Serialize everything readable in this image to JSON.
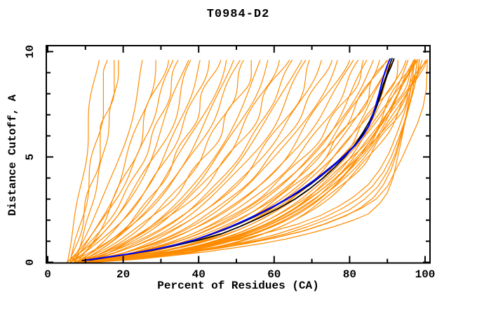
{
  "chart_data": {
    "type": "line",
    "title": "T0984-D2",
    "xlabel": "Percent of Residues (CA)",
    "ylabel": "Distance Cutoff, A",
    "xlim": [
      0,
      100
    ],
    "ylim": [
      0,
      10
    ],
    "grid": false,
    "legend": "none",
    "x_major_ticks": [
      0,
      20,
      40,
      60,
      80,
      100
    ],
    "x_minor_ticks": [
      10,
      30,
      50,
      70,
      90
    ],
    "x_tick_labels": [
      "0",
      "20",
      "40",
      "60",
      "80",
      "100"
    ],
    "y_major_ticks": [
      0,
      5,
      10
    ],
    "y_minor_ticks": [
      1,
      2,
      3,
      4,
      6,
      7,
      8,
      9
    ],
    "y_tick_labels": [
      "0",
      "5",
      "10"
    ],
    "colors": {
      "model_lines": "#ff8c00",
      "best_model_line": "#0000ff",
      "second_model_line": "#000090",
      "reference_lines": "#000000",
      "axis": "#000000",
      "text": "#000000",
      "background": "#ffffff"
    },
    "y_curve_top": 9.7,
    "model_curves_param": [
      [
        5,
        13,
        8,
        1
      ],
      [
        6,
        16,
        7,
        2
      ],
      [
        6,
        18,
        9,
        3
      ],
      [
        7,
        19,
        6,
        4
      ],
      [
        6,
        26,
        5,
        5
      ],
      [
        7,
        29,
        4.5,
        6
      ],
      [
        8,
        31,
        5.5,
        7
      ],
      [
        5,
        33,
        3.5,
        8
      ],
      [
        6,
        35,
        3.2,
        9
      ],
      [
        7,
        37,
        3,
        10
      ],
      [
        5,
        39,
        2.8,
        11
      ],
      [
        8,
        41,
        2.6,
        12
      ],
      [
        6,
        43,
        2.5,
        13
      ],
      [
        9,
        45,
        2.4,
        14
      ],
      [
        7,
        47,
        2.2,
        15
      ],
      [
        8,
        49,
        2.1,
        16
      ],
      [
        6,
        51,
        2,
        17
      ],
      [
        9,
        53,
        1.8,
        18
      ],
      [
        7,
        55,
        1.7,
        19
      ],
      [
        10,
        57,
        1.6,
        20
      ],
      [
        8,
        59,
        1.5,
        21
      ],
      [
        9,
        61,
        1.5,
        22
      ],
      [
        7,
        63,
        1.4,
        23
      ],
      [
        10,
        65,
        1.3,
        24
      ],
      [
        8,
        67,
        1.3,
        25
      ],
      [
        9,
        69,
        1.2,
        26
      ],
      [
        11,
        71,
        1.1,
        27
      ],
      [
        8,
        73,
        1.1,
        28
      ],
      [
        10,
        75,
        1,
        29
      ],
      [
        9,
        77,
        0.95,
        30
      ],
      [
        11,
        79,
        0.9,
        31
      ],
      [
        8,
        81,
        0.85,
        32
      ],
      [
        10,
        83,
        0.8,
        33
      ],
      [
        9,
        85,
        0.75,
        34
      ],
      [
        10,
        86,
        0.7,
        35
      ],
      [
        8,
        87,
        0.65,
        36
      ],
      [
        11,
        88,
        0.6,
        37
      ],
      [
        9,
        89,
        0.6,
        38
      ],
      [
        10,
        90,
        0.55,
        39
      ],
      [
        8,
        91,
        0.5,
        40
      ],
      [
        11,
        92,
        0.5,
        41
      ],
      [
        9,
        93,
        0.45,
        42
      ],
      [
        10,
        94,
        0.45,
        43
      ],
      [
        8,
        95,
        0.4,
        44
      ],
      [
        11,
        96,
        0.4,
        45
      ],
      [
        9,
        96.5,
        0.35,
        46
      ],
      [
        10,
        97,
        0.35,
        47
      ],
      [
        8,
        97.5,
        0.3,
        48
      ],
      [
        11,
        98,
        0.3,
        49
      ],
      [
        9,
        98.5,
        0.28,
        50
      ],
      [
        10,
        99,
        0.26,
        51
      ],
      [
        8,
        99.5,
        0.24,
        52
      ],
      [
        12,
        100,
        0.22,
        53
      ],
      [
        9,
        100,
        0.2,
        54
      ],
      [
        11,
        99,
        0.3,
        55
      ],
      [
        10,
        98,
        0.33,
        56
      ]
    ],
    "model_curves_points": [
      [
        [
          8,
          0
        ],
        [
          20,
          0.15
        ],
        [
          32,
          0.3
        ],
        [
          42,
          0.5
        ],
        [
          50,
          0.7
        ],
        [
          57,
          0.9
        ],
        [
          63,
          1.1
        ],
        [
          70,
          1.4
        ],
        [
          76,
          1.7
        ],
        [
          81,
          2.0
        ],
        [
          85,
          2.3
        ],
        [
          88,
          2.8
        ],
        [
          90,
          3.3
        ],
        [
          91.5,
          4.0
        ],
        [
          92.5,
          4.8
        ],
        [
          93.5,
          5.6
        ],
        [
          94.5,
          6.5
        ],
        [
          95.5,
          7.5
        ],
        [
          96.5,
          8.5
        ],
        [
          97,
          9.2
        ],
        [
          97.3,
          9.65
        ]
      ],
      [
        [
          9,
          0
        ],
        [
          18,
          0.15
        ],
        [
          28,
          0.3
        ],
        [
          38,
          0.5
        ],
        [
          46,
          0.72
        ],
        [
          54,
          0.95
        ],
        [
          61,
          1.2
        ],
        [
          68,
          1.5
        ],
        [
          74,
          1.85
        ],
        [
          79,
          2.2
        ],
        [
          83,
          2.6
        ],
        [
          86.5,
          3.1
        ],
        [
          89,
          3.7
        ],
        [
          91,
          4.4
        ],
        [
          92.5,
          5.2
        ],
        [
          94,
          6.2
        ],
        [
          95.5,
          7.2
        ],
        [
          97,
          8.2
        ],
        [
          98,
          9.0
        ],
        [
          98.5,
          9.65
        ]
      ],
      [
        [
          10,
          0
        ],
        [
          22,
          0.2
        ],
        [
          34,
          0.4
        ],
        [
          45,
          0.65
        ],
        [
          53,
          0.9
        ],
        [
          60,
          1.15
        ],
        [
          67,
          1.45
        ],
        [
          73,
          1.8
        ],
        [
          78,
          2.15
        ],
        [
          83,
          2.55
        ],
        [
          87,
          3.0
        ],
        [
          90,
          3.6
        ],
        [
          92,
          4.3
        ],
        [
          94,
          5.0
        ],
        [
          96,
          5.8
        ],
        [
          98,
          6.6
        ],
        [
          99.5,
          7.4
        ],
        [
          100.3,
          8.2
        ],
        [
          100.5,
          9.0
        ],
        [
          100.6,
          9.65
        ]
      ],
      [
        [
          7,
          0
        ],
        [
          16,
          0.18
        ],
        [
          26,
          0.38
        ],
        [
          36,
          0.6
        ],
        [
          44,
          0.85
        ],
        [
          52,
          1.12
        ],
        [
          59,
          1.45
        ],
        [
          66,
          1.8
        ],
        [
          72,
          2.2
        ],
        [
          77,
          2.65
        ],
        [
          81,
          3.1
        ],
        [
          85,
          3.7
        ],
        [
          88,
          4.4
        ],
        [
          90.5,
          5.2
        ],
        [
          92.5,
          6.1
        ],
        [
          94.5,
          7.1
        ],
        [
          96,
          8.1
        ],
        [
          97.5,
          9.0
        ],
        [
          98,
          9.65
        ]
      ],
      [
        [
          9,
          0
        ],
        [
          24,
          0.25
        ],
        [
          38,
          0.5
        ],
        [
          48,
          0.78
        ],
        [
          56,
          1.05
        ],
        [
          63,
          1.35
        ],
        [
          69,
          1.7
        ],
        [
          75,
          2.1
        ],
        [
          80,
          2.5
        ],
        [
          84,
          3.0
        ],
        [
          87.5,
          3.6
        ],
        [
          90,
          4.3
        ],
        [
          92,
          5.1
        ],
        [
          93.5,
          6.0
        ],
        [
          95,
          7.0
        ],
        [
          96.5,
          8.0
        ],
        [
          97.5,
          9.0
        ],
        [
          98,
          9.65
        ]
      ],
      [
        [
          11,
          0
        ],
        [
          26,
          0.3
        ],
        [
          40,
          0.6
        ],
        [
          52,
          0.95
        ],
        [
          60,
          1.3
        ],
        [
          67,
          1.7
        ],
        [
          73,
          2.1
        ],
        [
          78,
          2.55
        ],
        [
          82.5,
          3.05
        ],
        [
          86,
          3.6
        ],
        [
          89,
          4.3
        ],
        [
          91,
          5.0
        ],
        [
          93,
          5.9
        ],
        [
          95,
          6.9
        ],
        [
          96.5,
          7.9
        ],
        [
          98,
          8.9
        ],
        [
          98.5,
          9.65
        ]
      ]
    ],
    "reference_curves": [
      {
        "name": "black-curve-1",
        "color": "#000000",
        "points": [
          [
            9,
            0.08
          ],
          [
            13,
            0.18
          ],
          [
            18,
            0.3
          ],
          [
            23,
            0.44
          ],
          [
            28,
            0.6
          ],
          [
            33,
            0.78
          ],
          [
            38,
            1.0
          ],
          [
            43,
            1.3
          ],
          [
            47,
            1.56
          ],
          [
            51,
            1.85
          ],
          [
            55,
            2.18
          ],
          [
            59,
            2.55
          ],
          [
            63,
            2.95
          ],
          [
            66.5,
            3.32
          ],
          [
            69.5,
            3.68
          ],
          [
            72.5,
            4.1
          ],
          [
            75.5,
            4.55
          ],
          [
            78.5,
            5.05
          ],
          [
            81,
            5.5
          ],
          [
            83,
            5.95
          ],
          [
            84.8,
            6.4
          ],
          [
            86,
            6.85
          ],
          [
            87.2,
            7.4
          ],
          [
            88.2,
            7.9
          ],
          [
            89,
            8.4
          ],
          [
            90,
            8.9
          ],
          [
            91,
            9.3
          ],
          [
            91.8,
            9.68
          ]
        ]
      },
      {
        "name": "black-curve-2",
        "color": "#000000",
        "points": [
          [
            11,
            0.1
          ],
          [
            16,
            0.24
          ],
          [
            22,
            0.4
          ],
          [
            28,
            0.58
          ],
          [
            34,
            0.8
          ],
          [
            40,
            1.05
          ],
          [
            46,
            1.35
          ],
          [
            51,
            1.7
          ],
          [
            56,
            2.1
          ],
          [
            61,
            2.55
          ],
          [
            65.5,
            3.0
          ],
          [
            69.5,
            3.5
          ],
          [
            73,
            4.0
          ],
          [
            76,
            4.5
          ],
          [
            79,
            5.05
          ],
          [
            81.5,
            5.6
          ],
          [
            83.5,
            6.15
          ],
          [
            85.3,
            6.7
          ],
          [
            86.8,
            7.3
          ],
          [
            88,
            7.9
          ],
          [
            89,
            8.5
          ],
          [
            90,
            9.0
          ],
          [
            90.8,
            9.45
          ],
          [
            91.3,
            9.7
          ]
        ]
      }
    ],
    "highlight_curves": [
      {
        "name": "navy-curve",
        "color": "#000090",
        "points": [
          [
            10.5,
            0.1
          ],
          [
            14.5,
            0.21
          ],
          [
            19.5,
            0.34
          ],
          [
            24.5,
            0.49
          ],
          [
            29.5,
            0.66
          ],
          [
            34.5,
            0.86
          ],
          [
            39.5,
            1.1
          ],
          [
            44.5,
            1.42
          ],
          [
            48.5,
            1.7
          ],
          [
            52.5,
            2.02
          ],
          [
            56.5,
            2.36
          ],
          [
            60.5,
            2.73
          ],
          [
            64.3,
            3.12
          ],
          [
            67.3,
            3.48
          ],
          [
            70.3,
            3.86
          ],
          [
            73.2,
            4.26
          ],
          [
            76.2,
            4.7
          ],
          [
            79,
            5.15
          ],
          [
            81.7,
            5.6
          ],
          [
            83.7,
            6.05
          ],
          [
            85.2,
            6.5
          ],
          [
            86.2,
            7.0
          ],
          [
            87.1,
            7.55
          ],
          [
            87.9,
            8.05
          ],
          [
            88.6,
            8.55
          ],
          [
            89.4,
            9.05
          ],
          [
            90.1,
            9.4
          ],
          [
            90.8,
            9.68
          ]
        ]
      },
      {
        "name": "blue-curve",
        "color": "#0000ff",
        "points": [
          [
            10,
            0.1
          ],
          [
            14,
            0.2
          ],
          [
            19,
            0.33
          ],
          [
            24,
            0.47
          ],
          [
            29,
            0.63
          ],
          [
            34,
            0.83
          ],
          [
            39,
            1.07
          ],
          [
            44,
            1.38
          ],
          [
            48,
            1.66
          ],
          [
            52,
            1.97
          ],
          [
            56,
            2.3
          ],
          [
            60,
            2.67
          ],
          [
            64,
            3.07
          ],
          [
            67,
            3.43
          ],
          [
            70,
            3.8
          ],
          [
            73,
            4.2
          ],
          [
            76,
            4.62
          ],
          [
            79,
            5.1
          ],
          [
            81.5,
            5.55
          ],
          [
            83.5,
            6.0
          ],
          [
            85,
            6.45
          ],
          [
            86,
            6.9
          ],
          [
            87,
            7.5
          ],
          [
            87.8,
            8.0
          ],
          [
            88.5,
            8.5
          ],
          [
            89.3,
            9.0
          ],
          [
            90,
            9.35
          ],
          [
            90.7,
            9.65
          ]
        ]
      }
    ]
  }
}
